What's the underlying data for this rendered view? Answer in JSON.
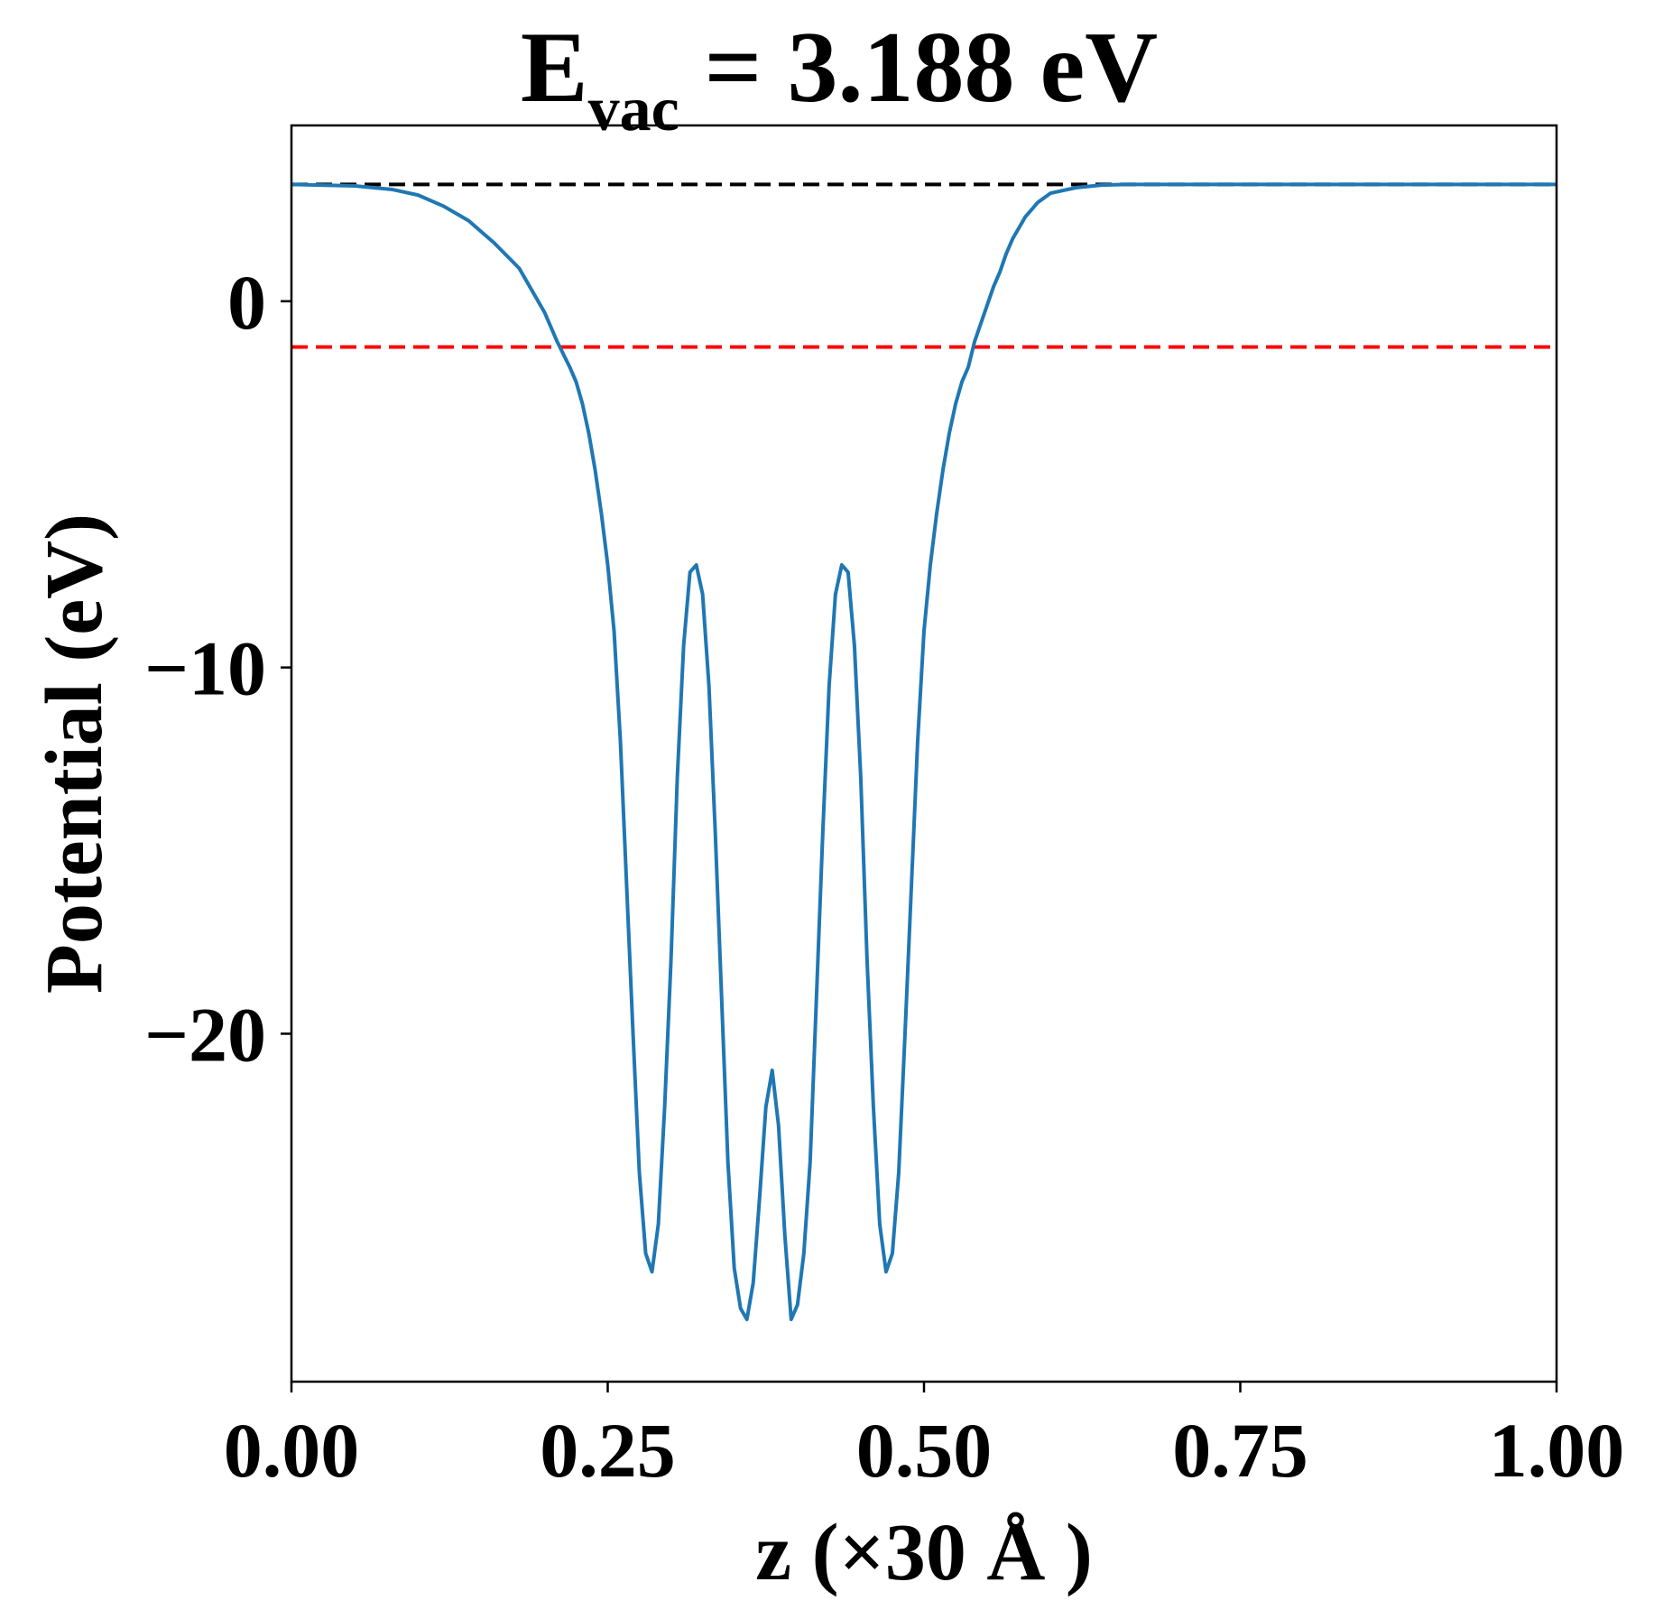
{
  "chart_data": {
    "type": "line",
    "title": {
      "symbol": "E",
      "subscript": "vac",
      "rest": " = 3.188 eV"
    },
    "xlabel": "z (×30 Å )",
    "ylabel": "Potential (eV)",
    "xlim": [
      0,
      1
    ],
    "ylim": [
      -29.5,
      4.8
    ],
    "xticks": [
      0,
      0.25,
      0.5,
      0.75,
      1
    ],
    "xtick_labels": [
      "0.00",
      "0.25",
      "0.50",
      "0.75",
      "1.00"
    ],
    "yticks": [
      0,
      -10,
      -20
    ],
    "ytick_labels": [
      "0",
      "−10",
      "−20"
    ],
    "grid": false,
    "reference_lines": [
      {
        "y": 3.188,
        "color": "#000000",
        "style": "dashed"
      },
      {
        "y": -1.25,
        "color": "#ff0000",
        "style": "dashed"
      }
    ],
    "series": [
      {
        "color": "#1f77b4",
        "x": [
          0.0,
          0.05,
          0.08,
          0.1,
          0.12,
          0.14,
          0.16,
          0.18,
          0.2,
          0.21,
          0.22,
          0.225,
          0.23,
          0.235,
          0.24,
          0.245,
          0.25,
          0.255,
          0.26,
          0.265,
          0.27,
          0.275,
          0.28,
          0.285,
          0.29,
          0.295,
          0.3,
          0.305,
          0.31,
          0.315,
          0.32,
          0.325,
          0.33,
          0.335,
          0.34,
          0.345,
          0.35,
          0.355,
          0.36,
          0.365,
          0.37,
          0.375,
          0.38,
          0.385,
          0.39,
          0.395,
          0.4,
          0.405,
          0.41,
          0.415,
          0.42,
          0.425,
          0.43,
          0.435,
          0.44,
          0.445,
          0.45,
          0.455,
          0.46,
          0.465,
          0.47,
          0.475,
          0.48,
          0.485,
          0.49,
          0.495,
          0.5,
          0.505,
          0.51,
          0.515,
          0.52,
          0.525,
          0.53,
          0.535,
          0.54,
          0.545,
          0.55,
          0.555,
          0.56,
          0.565,
          0.57,
          0.58,
          0.59,
          0.6,
          0.62,
          0.64,
          0.66,
          0.68,
          0.7,
          0.75,
          0.8,
          0.9,
          1.0
        ],
        "y": [
          3.188,
          3.15,
          3.05,
          2.9,
          2.6,
          2.2,
          1.6,
          0.9,
          -0.3,
          -1.1,
          -1.8,
          -2.2,
          -2.8,
          -3.6,
          -4.6,
          -5.8,
          -7.2,
          -9.0,
          -12.0,
          -16.0,
          -20.0,
          -23.8,
          -26.0,
          -26.5,
          -25.2,
          -22.0,
          -18.0,
          -13.0,
          -9.4,
          -7.4,
          -7.2,
          -8.0,
          -10.5,
          -14.5,
          -19.0,
          -23.5,
          -26.4,
          -27.5,
          -27.8,
          -26.8,
          -24.5,
          -22.0,
          -21.0,
          -22.5,
          -25.5,
          -27.8,
          -27.4,
          -26.0,
          -23.5,
          -19.0,
          -14.5,
          -10.5,
          -8.0,
          -7.2,
          -7.4,
          -9.4,
          -13.0,
          -18.0,
          -22.0,
          -25.2,
          -26.5,
          -26.0,
          -23.8,
          -20.0,
          -16.0,
          -12.0,
          -9.0,
          -7.2,
          -5.8,
          -4.6,
          -3.6,
          -2.8,
          -2.2,
          -1.8,
          -1.1,
          -0.6,
          -0.1,
          0.4,
          0.8,
          1.3,
          1.7,
          2.3,
          2.7,
          2.95,
          3.1,
          3.17,
          3.188,
          3.188,
          3.188,
          3.188,
          3.188,
          3.188,
          3.188
        ]
      }
    ]
  }
}
